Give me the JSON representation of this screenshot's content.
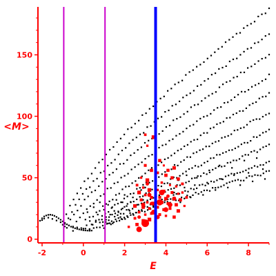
{
  "chart_data": {
    "type": "scatter",
    "xlabel": "E",
    "ylabel": "<M>",
    "xlim": [
      -2.2,
      9
    ],
    "ylim": [
      -3,
      189
    ],
    "x_ticks": [
      -2,
      0,
      2,
      4,
      6,
      8
    ],
    "y_ticks": [
      0,
      50,
      100,
      150
    ],
    "axis_color": "#ff0000",
    "vertical_lines": [
      {
        "x": -0.95,
        "color": "#cc00cc"
      },
      {
        "x": 1.05,
        "color": "#cc00cc"
      },
      {
        "x": 3.5,
        "color": "#0000ff"
      }
    ],
    "series": [
      {
        "color": "#000000",
        "marker": "small-dot",
        "curves": [
          {
            "x0": -1.0,
            "x1": 9.0,
            "m0": 12,
            "m1": 187,
            "k": 0.72
          },
          {
            "x0": -0.9,
            "x1": 9.0,
            "m0": 10,
            "m1": 167,
            "k": 0.74
          },
          {
            "x0": -0.8,
            "x1": 9.0,
            "m0": 9,
            "m1": 150,
            "k": 0.76
          },
          {
            "x0": -0.5,
            "x1": 9.0,
            "m0": 8,
            "m1": 133,
            "k": 0.78
          },
          {
            "x0": 0.0,
            "x1": 9.0,
            "m0": 8,
            "m1": 118,
            "k": 0.8
          },
          {
            "x0": 0.3,
            "x1": 9.0,
            "m0": 8,
            "m1": 103,
            "k": 0.82
          },
          {
            "x0": 0.5,
            "x1": 9.0,
            "m0": 8,
            "m1": 88,
            "k": 0.84
          },
          {
            "x0": 0.8,
            "x1": 9.0,
            "m0": 9,
            "m1": 76,
            "k": 0.86
          },
          {
            "x0": 1.0,
            "x1": 9.0,
            "m0": 10,
            "m1": 63,
            "k": 0.88
          },
          {
            "x0": 1.2,
            "x1": 9.0,
            "m0": 12,
            "m1": 55,
            "k": 0.9
          }
        ],
        "points_per_curve": 58,
        "left_arc": [
          [
            -2.1,
            15
          ],
          [
            -2.0,
            17
          ],
          [
            -1.9,
            18.5
          ],
          [
            -1.8,
            19.3
          ],
          [
            -1.7,
            19.8
          ],
          [
            -1.6,
            19.9
          ],
          [
            -1.5,
            19.6
          ],
          [
            -1.4,
            19.0
          ],
          [
            -1.3,
            18.1
          ],
          [
            -1.2,
            17.0
          ],
          [
            -1.1,
            15.8
          ],
          [
            -1.0,
            14.5
          ],
          [
            -0.9,
            13.3
          ],
          [
            -0.8,
            12.1
          ],
          [
            -0.7,
            11.1
          ],
          [
            -0.6,
            10.2
          ],
          [
            -0.5,
            9.5
          ],
          [
            -0.4,
            8.9
          ],
          [
            -0.3,
            8.4
          ],
          [
            -0.2,
            8.0
          ],
          [
            -0.1,
            7.6
          ],
          [
            0.0,
            7.3
          ],
          [
            0.1,
            7.1
          ],
          [
            0.2,
            7.0
          ],
          [
            0.3,
            6.9
          ],
          [
            0.4,
            7.0
          ],
          [
            -1.5,
            16.5
          ],
          [
            -1.3,
            15.2
          ],
          [
            -1.1,
            13.8
          ],
          [
            -0.9,
            12.5
          ],
          [
            -0.7,
            11.2
          ],
          [
            -0.5,
            10.3
          ],
          [
            -0.3,
            9.6
          ],
          [
            -0.1,
            9.0
          ],
          [
            0.1,
            8.6
          ],
          [
            0.3,
            8.3
          ],
          [
            -1.7,
            17.5
          ],
          [
            -1.9,
            16.8
          ],
          [
            -2.0,
            15.5
          ]
        ],
        "extra_points": [
          [
            0.4,
            12
          ],
          [
            0.6,
            14
          ],
          [
            0.9,
            16
          ],
          [
            1.1,
            18
          ],
          [
            1.3,
            20
          ],
          [
            1.5,
            23
          ],
          [
            1.7,
            22
          ],
          [
            1.9,
            25
          ],
          [
            2.1,
            27
          ],
          [
            2.3,
            30
          ],
          [
            0.2,
            22
          ],
          [
            0.5,
            26
          ],
          [
            0.8,
            30
          ],
          [
            1.2,
            28
          ],
          [
            1.6,
            32
          ],
          [
            2.0,
            36
          ],
          [
            2.4,
            34
          ],
          [
            2.8,
            40
          ],
          [
            3.0,
            42
          ],
          [
            0.1,
            16
          ],
          [
            0.7,
            20
          ],
          [
            1.4,
            26
          ],
          [
            2.2,
            24
          ],
          [
            2.6,
            28
          ],
          [
            1.8,
            18
          ],
          [
            2.9,
            32
          ],
          [
            3.2,
            36
          ],
          [
            0.3,
            18
          ],
          [
            1.0,
            24
          ],
          [
            1.9,
            30
          ],
          [
            4.2,
            45
          ],
          [
            4.6,
            48
          ],
          [
            5.0,
            52
          ],
          [
            5.5,
            50
          ],
          [
            6.1,
            56
          ],
          [
            6.6,
            60
          ],
          [
            7.2,
            58
          ],
          [
            7.8,
            64
          ],
          [
            8.4,
            66
          ],
          [
            4.4,
            38
          ],
          [
            4.9,
            42
          ],
          [
            5.4,
            44
          ],
          [
            6.0,
            46
          ],
          [
            6.7,
            49
          ],
          [
            7.3,
            52
          ],
          [
            8.0,
            54
          ],
          [
            8.7,
            57
          ],
          [
            4.7,
            30
          ],
          [
            5.2,
            34
          ],
          [
            5.8,
            36
          ],
          [
            6.4,
            40
          ],
          [
            7.0,
            42
          ],
          [
            7.6,
            44
          ],
          [
            8.2,
            47
          ],
          [
            8.8,
            49
          ]
        ]
      },
      {
        "color": "#ff0000",
        "marker": "square",
        "points": [
          [
            3.0,
            85
          ],
          [
            3.4,
            83
          ],
          [
            3.1,
            76
          ],
          [
            3.7,
            64
          ],
          [
            3.9,
            60
          ],
          [
            4.1,
            56
          ],
          [
            4.4,
            58
          ],
          [
            3.0,
            60
          ],
          [
            3.3,
            56
          ],
          [
            3.6,
            54
          ],
          [
            4.0,
            52
          ],
          [
            4.3,
            50
          ],
          [
            4.6,
            49
          ],
          [
            2.8,
            50
          ],
          [
            3.1,
            48
          ],
          [
            3.5,
            47
          ],
          [
            3.8,
            46
          ],
          [
            4.2,
            44
          ],
          [
            4.5,
            43
          ],
          [
            4.8,
            45
          ],
          [
            2.6,
            44
          ],
          [
            2.9,
            42
          ],
          [
            3.2,
            40
          ],
          [
            3.6,
            40
          ],
          [
            3.9,
            39
          ],
          [
            4.3,
            38
          ],
          [
            4.6,
            37
          ],
          [
            2.7,
            38
          ],
          [
            3.0,
            36
          ],
          [
            3.3,
            34
          ],
          [
            3.7,
            34
          ],
          [
            4.0,
            33
          ],
          [
            4.4,
            33
          ],
          [
            4.7,
            32
          ],
          [
            2.8,
            32
          ],
          [
            3.1,
            30
          ],
          [
            3.4,
            29
          ],
          [
            3.8,
            30
          ],
          [
            4.1,
            29
          ],
          [
            4.5,
            28
          ],
          [
            2.5,
            27
          ],
          [
            2.9,
            26
          ],
          [
            3.2,
            25
          ],
          [
            3.6,
            26
          ],
          [
            3.9,
            24
          ],
          [
            4.2,
            25
          ],
          [
            4.6,
            23
          ],
          [
            2.7,
            22
          ],
          [
            3.0,
            20
          ],
          [
            3.3,
            21
          ],
          [
            3.7,
            20
          ],
          [
            4.0,
            19
          ],
          [
            4.4,
            18
          ],
          [
            2.5,
            17
          ],
          [
            2.9,
            15
          ],
          [
            3.2,
            16
          ],
          [
            3.5,
            14
          ],
          [
            2.2,
            10
          ],
          [
            2.6,
            12
          ],
          [
            4.8,
            38
          ],
          [
            4.9,
            27
          ],
          [
            5.0,
            34
          ]
        ]
      },
      {
        "color": "#ff0000",
        "marker": "circle",
        "points": [
          [
            3.0,
            13,
            5.5
          ],
          [
            2.7,
            8,
            4.0
          ],
          [
            3.4,
            22,
            3.5
          ],
          [
            3.7,
            30,
            4.5
          ],
          [
            4.2,
            28,
            3.5
          ],
          [
            3.8,
            38,
            4.0
          ],
          [
            4.0,
            24,
            3.5
          ],
          [
            2.9,
            28,
            3.0
          ],
          [
            3.2,
            36,
            3.0
          ],
          [
            3.6,
            18,
            3.0
          ],
          [
            4.4,
            33,
            3.0
          ],
          [
            3.1,
            45,
            2.5
          ],
          [
            2.7,
            18,
            2.5
          ],
          [
            4.1,
            35,
            2.5
          ],
          [
            3.3,
            29,
            2.5
          ]
        ]
      }
    ]
  }
}
